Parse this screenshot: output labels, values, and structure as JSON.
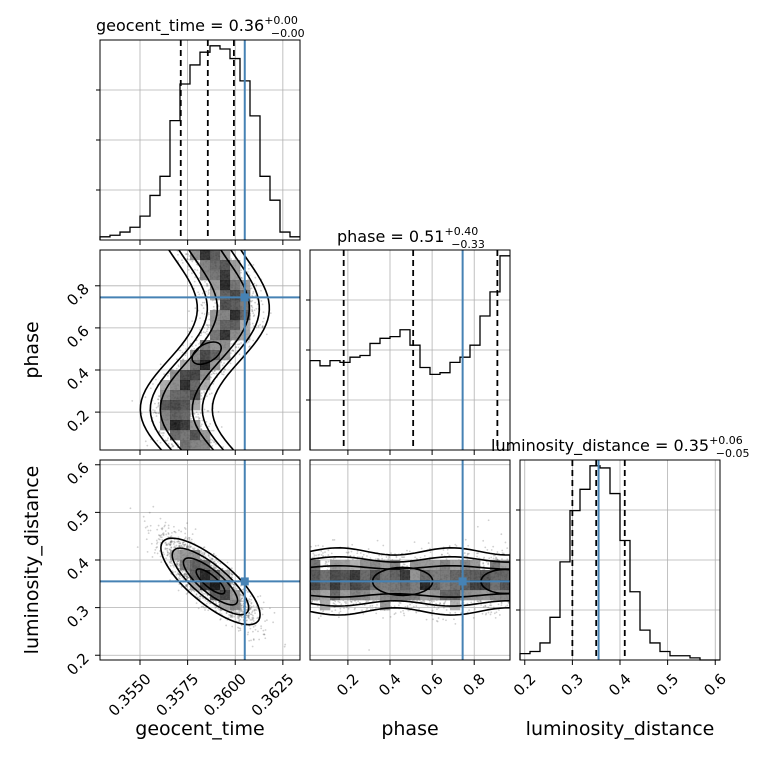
{
  "chart_data": {
    "type": "corner",
    "parameters": [
      "geocent_time",
      "phase",
      "luminosity_distance"
    ],
    "truths": {
      "geocent_time": 0.3605,
      "phase": 0.745,
      "luminosity_distance": 0.355
    },
    "colors": {
      "truth": "#4682b4",
      "hist": "#000000",
      "grid": "#b0b0b0",
      "points": "#555555"
    },
    "grid": true,
    "ranges": {
      "geocent_time": [
        0.3529,
        0.3634
      ],
      "phase": [
        0.02,
        0.97
      ],
      "luminosity_distance": [
        0.19,
        0.61
      ]
    },
    "ticks": {
      "geocent_time": {
        "values": [
          0.355,
          0.3575,
          0.36,
          0.3625
        ],
        "labels": [
          "0.3550",
          "0.3575",
          "0.3600",
          "0.3625"
        ]
      },
      "phase": {
        "values": [
          0.2,
          0.4,
          0.6,
          0.8
        ],
        "labels": [
          "0.2",
          "0.4",
          "0.6",
          "0.8"
        ]
      },
      "luminosity_distance": {
        "values": [
          0.2,
          0.3,
          0.4,
          0.5,
          0.6
        ],
        "labels": [
          "0.2",
          "0.3",
          "0.4",
          "0.5",
          "0.6"
        ]
      }
    },
    "titles": [
      {
        "param": "geocent_time",
        "text": "geocent_time = 0.36",
        "upper": "+0.00",
        "lower": "−0.00"
      },
      {
        "param": "phase",
        "text": "phase = 0.51",
        "upper": "+0.40",
        "lower": "−0.33"
      },
      {
        "param": "luminosity_distance",
        "text": "luminosity_distance = 0.35",
        "upper": "+0.06",
        "lower": "−0.05"
      }
    ],
    "axis_labels": {
      "x": [
        "geocent_time",
        "phase",
        "luminosity_distance"
      ],
      "y": [
        "phase",
        "luminosity_distance"
      ]
    },
    "quantiles": {
      "geocent_time": [
        0.35714,
        0.35856,
        0.35993
      ],
      "phase": [
        0.18,
        0.51,
        0.91
      ],
      "luminosity_distance": [
        0.3,
        0.35,
        0.41
      ]
    },
    "hist_geocent_time": {
      "edges_start": 0.3529,
      "bin_width": 0.000525,
      "counts": [
        2,
        3,
        5,
        8,
        15,
        28,
        40,
        75,
        98,
        110,
        118,
        122,
        120,
        114,
        100,
        78,
        40,
        25,
        5,
        2
      ]
    },
    "hist_phase": {
      "edges_start": 0.02,
      "bin_width": 0.0475,
      "counts": [
        52,
        49,
        52,
        51,
        54,
        55,
        62,
        65,
        66,
        70,
        61,
        48,
        44,
        45,
        51,
        54,
        61,
        78,
        92,
        113
      ]
    },
    "hist_luminosity_distance": {
      "edges_start": 0.19,
      "bin_width": 0.021,
      "counts": [
        3,
        4,
        8,
        20,
        46,
        70,
        80,
        91,
        90,
        78,
        56,
        32,
        14,
        8,
        4,
        2,
        2,
        1,
        0,
        0
      ]
    }
  }
}
